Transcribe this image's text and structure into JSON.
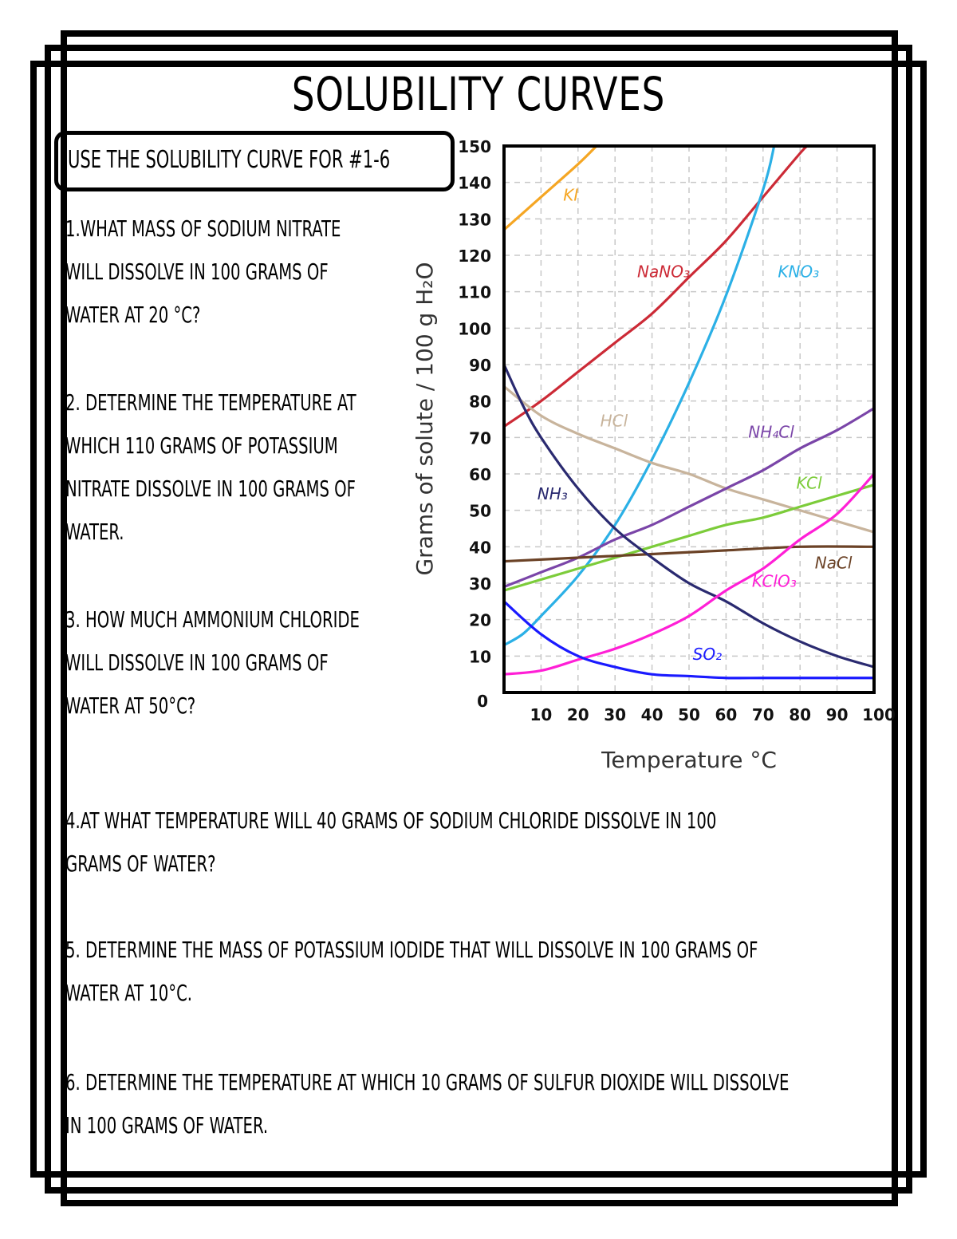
{
  "page": {
    "title": "SOLUBILITY CURVES",
    "instruction": "USE THE SOLUBILITY CURVE FOR #1-6"
  },
  "questions": [
    {
      "number": 1,
      "lines": [
        "1.WHAT MASS OF SODIUM NITRATE",
        "WILL DISSOLVE IN 100 GRAMS OF",
        "WATER AT 20 °C?"
      ]
    },
    {
      "number": 2,
      "lines": [
        "2. DETERMINE THE TEMPERATURE AT",
        "WHICH 110 GRAMS OF POTASSIUM",
        "NITRATE DISSOLVE IN 100 GRAMS OF",
        "WATER."
      ]
    },
    {
      "number": 3,
      "lines": [
        "3. HOW MUCH AMMONIUM CHLORIDE",
        "WILL DISSOLVE IN 100 GRAMS OF",
        "WATER AT 50°C?"
      ]
    },
    {
      "number": 4,
      "lines": [
        "4.AT WHAT TEMPERATURE WILL 40 GRAMS OF SODIUM CHLORIDE DISSOLVE IN 100",
        "GRAMS OF WATER?"
      ]
    },
    {
      "number": 5,
      "lines": [
        "5. DETERMINE THE MASS OF POTASSIUM IODIDE THAT WILL DISSOLVE IN 100 GRAMS OF",
        "WATER AT 10°C."
      ]
    },
    {
      "number": 6,
      "lines": [
        "6. DETERMINE THE TEMPERATURE AT WHICH 10 GRAMS OF SULFUR DIOXIDE WILL DISSOLVE",
        "IN 100 GRAMS OF WATER."
      ]
    }
  ],
  "chart_data": {
    "type": "line",
    "title": "",
    "xlabel": "Temperature °C",
    "ylabel": "Grams of solute / 100 g H₂O",
    "xlim": [
      0,
      100
    ],
    "ylim": [
      0,
      150
    ],
    "x_ticks": [
      10,
      20,
      30,
      40,
      50,
      60,
      70,
      80,
      90,
      100
    ],
    "y_ticks": [
      0,
      10,
      20,
      30,
      40,
      50,
      60,
      70,
      80,
      90,
      100,
      110,
      120,
      130,
      140,
      150
    ],
    "grid": true,
    "legend": "inline labels",
    "series": [
      {
        "name": "KI",
        "color": "#f5a623",
        "label_pos": [
          16,
          135
        ],
        "points": [
          [
            0,
            127
          ],
          [
            10,
            136
          ],
          [
            20,
            145
          ],
          [
            25,
            150
          ]
        ]
      },
      {
        "name": "NaNO₃",
        "color": "#cc2a36",
        "label_pos": [
          36,
          114
        ],
        "points": [
          [
            0,
            73
          ],
          [
            10,
            80
          ],
          [
            20,
            88
          ],
          [
            30,
            96
          ],
          [
            40,
            104
          ],
          [
            50,
            114
          ],
          [
            60,
            124
          ],
          [
            70,
            136
          ],
          [
            80,
            148
          ],
          [
            82,
            150
          ]
        ]
      },
      {
        "name": "KNO₃",
        "color": "#2bb0e6",
        "label_pos": [
          74,
          114
        ],
        "points": [
          [
            0,
            13
          ],
          [
            5,
            16
          ],
          [
            10,
            21
          ],
          [
            20,
            32
          ],
          [
            30,
            46
          ],
          [
            40,
            64
          ],
          [
            50,
            85
          ],
          [
            60,
            109
          ],
          [
            70,
            138
          ],
          [
            73,
            150
          ]
        ]
      },
      {
        "name": "HCl",
        "color": "#c8b49c",
        "label_pos": [
          26,
          73
        ],
        "points": [
          [
            0,
            84
          ],
          [
            10,
            76
          ],
          [
            20,
            71
          ],
          [
            30,
            67
          ],
          [
            40,
            63
          ],
          [
            50,
            60
          ],
          [
            60,
            56
          ],
          [
            70,
            53
          ],
          [
            80,
            50
          ],
          [
            90,
            47
          ],
          [
            100,
            44
          ]
        ]
      },
      {
        "name": "NH₄Cl",
        "color": "#7a45a8",
        "label_pos": [
          66,
          70
        ],
        "points": [
          [
            0,
            29
          ],
          [
            10,
            33
          ],
          [
            20,
            37
          ],
          [
            30,
            42
          ],
          [
            40,
            46
          ],
          [
            50,
            51
          ],
          [
            60,
            56
          ],
          [
            70,
            61
          ],
          [
            80,
            67
          ],
          [
            90,
            72
          ],
          [
            100,
            78
          ]
        ]
      },
      {
        "name": "KCl",
        "color": "#7ccc3a",
        "label_pos": [
          79,
          56
        ],
        "points": [
          [
            0,
            28
          ],
          [
            10,
            31
          ],
          [
            20,
            34
          ],
          [
            30,
            37
          ],
          [
            40,
            40
          ],
          [
            50,
            43
          ],
          [
            60,
            46
          ],
          [
            70,
            48
          ],
          [
            80,
            51
          ],
          [
            90,
            54
          ],
          [
            100,
            57
          ]
        ]
      },
      {
        "name": "NaCl",
        "color": "#6b4226",
        "label_pos": [
          84,
          34
        ],
        "points": [
          [
            0,
            36
          ],
          [
            20,
            37
          ],
          [
            40,
            38
          ],
          [
            60,
            39
          ],
          [
            80,
            40
          ],
          [
            100,
            40
          ]
        ]
      },
      {
        "name": "NH₃",
        "color": "#2a2a70",
        "label_pos": [
          9,
          53
        ],
        "points": [
          [
            0,
            90
          ],
          [
            5,
            79
          ],
          [
            10,
            70
          ],
          [
            20,
            56
          ],
          [
            30,
            45
          ],
          [
            40,
            37
          ],
          [
            50,
            30
          ],
          [
            60,
            25
          ],
          [
            70,
            19
          ],
          [
            80,
            14
          ],
          [
            90,
            10
          ],
          [
            100,
            7
          ]
        ]
      },
      {
        "name": "KClO₃",
        "color": "#ff1fd6",
        "label_pos": [
          67,
          29
        ],
        "points": [
          [
            0,
            5
          ],
          [
            10,
            6
          ],
          [
            20,
            9
          ],
          [
            30,
            12
          ],
          [
            40,
            16
          ],
          [
            50,
            21
          ],
          [
            60,
            28
          ],
          [
            70,
            34
          ],
          [
            80,
            42
          ],
          [
            90,
            49
          ],
          [
            100,
            60
          ]
        ]
      },
      {
        "name": "SO₂",
        "color": "#1a1aff",
        "label_pos": [
          51,
          9
        ],
        "points": [
          [
            0,
            25
          ],
          [
            10,
            16
          ],
          [
            20,
            10
          ],
          [
            30,
            7
          ],
          [
            40,
            5
          ],
          [
            50,
            4.5
          ],
          [
            60,
            4
          ],
          [
            70,
            4
          ],
          [
            80,
            4
          ],
          [
            90,
            4
          ],
          [
            100,
            4
          ]
        ]
      }
    ]
  }
}
